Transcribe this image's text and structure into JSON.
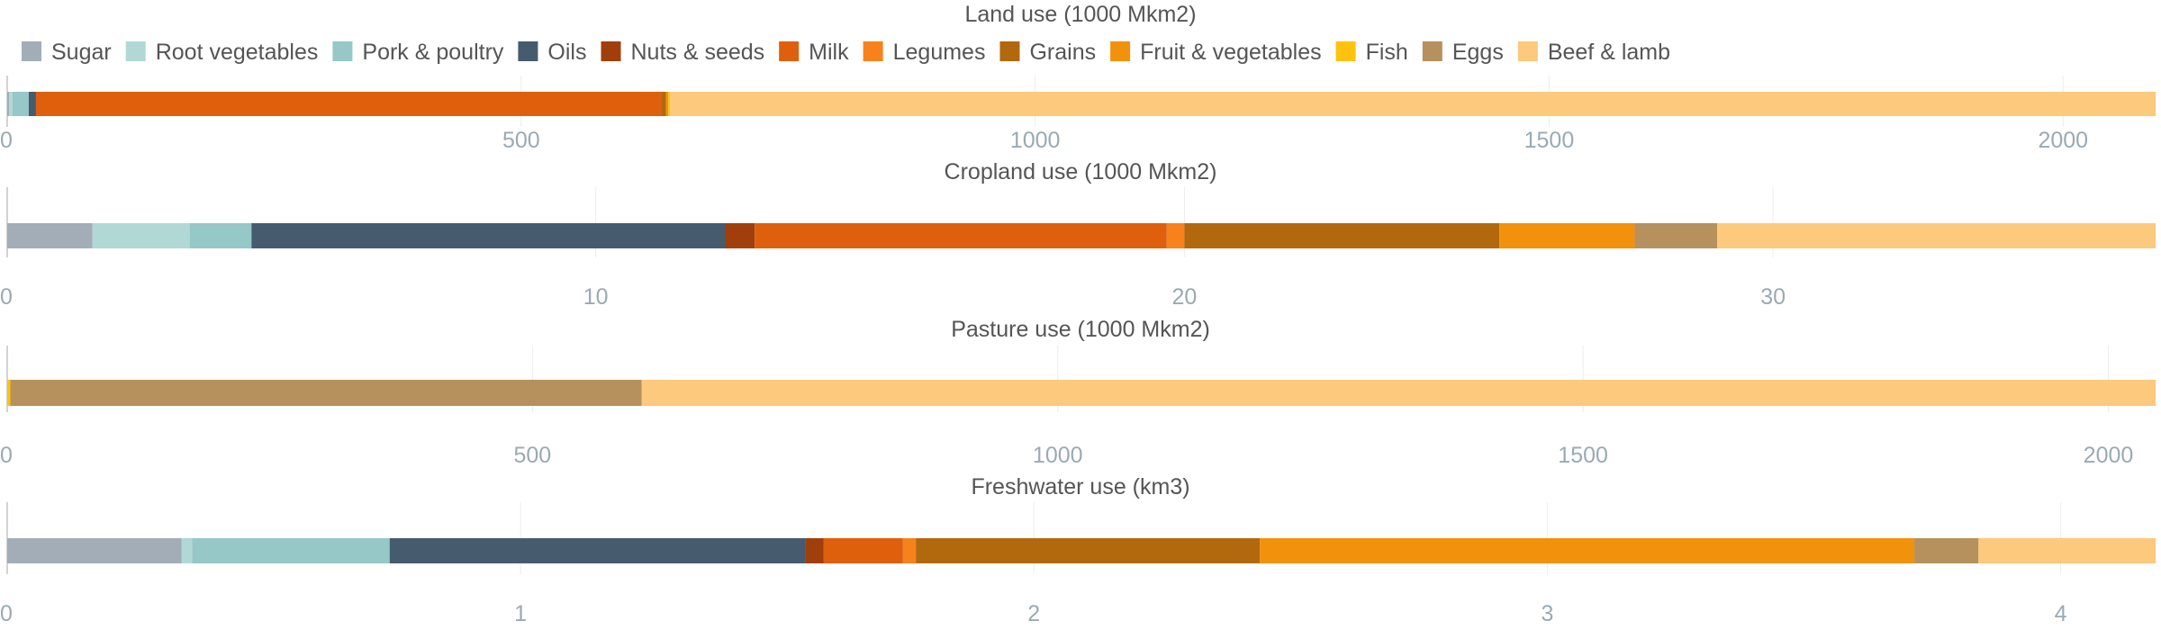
{
  "colors": {
    "Sugar": "#a2adb8",
    "Root vegetables": "#b2d8d6",
    "Pork & poultry": "#95c8c7",
    "Oils": "#465b6e",
    "Nuts & seeds": "#a13f0c",
    "Milk": "#df600c",
    "Legumes": "#f7821b",
    "Grains": "#b2680c",
    "Fruit & vegetables": "#f2910c",
    "Fish": "#ffc20e",
    "Eggs": "#b6915d",
    "Beef & lamb": "#fcc97d"
  },
  "chart_data": [
    {
      "type": "bar",
      "orientation": "horizontal",
      "stacked": true,
      "title": "Land use (1000 Mkm2)",
      "legend": [
        "Sugar",
        "Root vegetables",
        "Pork & poultry",
        "Oils",
        "Nuts & seeds",
        "Milk",
        "Legumes",
        "Grains",
        "Fruit & vegetables",
        "Fish",
        "Eggs",
        "Beef & lamb"
      ],
      "legend_position": "top",
      "xlim": [
        0,
        2090
      ],
      "ticks": [
        0,
        500,
        1000,
        1500,
        2000
      ],
      "grid": true,
      "segments": [
        {
          "name": "Sugar",
          "value": 2
        },
        {
          "name": "Root vegetables",
          "value": 3
        },
        {
          "name": "Pork & poultry",
          "value": 16
        },
        {
          "name": "Oils",
          "value": 7
        },
        {
          "name": "Nuts & seeds",
          "value": 0
        },
        {
          "name": "Milk",
          "value": 608
        },
        {
          "name": "Legumes",
          "value": 0
        },
        {
          "name": "Grains",
          "value": 5
        },
        {
          "name": "Fruit & vegetables",
          "value": 2
        },
        {
          "name": "Fish",
          "value": 2
        },
        {
          "name": "Eggs",
          "value": 0
        },
        {
          "name": "Beef & lamb",
          "value": 1445
        }
      ]
    },
    {
      "type": "bar",
      "orientation": "horizontal",
      "stacked": true,
      "title": "Cropland use (1000 Mkm2)",
      "xlim": [
        0,
        36.5
      ],
      "ticks": [
        0,
        10,
        20,
        30
      ],
      "grid": true,
      "segments": [
        {
          "name": "Sugar",
          "value": 1.45
        },
        {
          "name": "Root vegetables",
          "value": 1.65
        },
        {
          "name": "Pork & poultry",
          "value": 1.05
        },
        {
          "name": "Oils",
          "value": 8.05
        },
        {
          "name": "Nuts & seeds",
          "value": 0.5
        },
        {
          "name": "Milk",
          "value": 7.0
        },
        {
          "name": "Legumes",
          "value": 0.3
        },
        {
          "name": "Grains",
          "value": 5.35
        },
        {
          "name": "Fruit & vegetables",
          "value": 2.3
        },
        {
          "name": "Fish",
          "value": 0.0
        },
        {
          "name": "Eggs",
          "value": 1.4
        },
        {
          "name": "Beef & lamb",
          "value": 7.45
        }
      ]
    },
    {
      "type": "bar",
      "orientation": "horizontal",
      "stacked": true,
      "title": "Pasture use (1000 Mkm2)",
      "xlim": [
        0,
        2045
      ],
      "ticks": [
        0,
        500,
        1000,
        1500,
        2000
      ],
      "grid": true,
      "segments": [
        {
          "name": "Fish",
          "value": 3
        },
        {
          "name": "Eggs",
          "value": 601
        },
        {
          "name": "Beef & lamb",
          "value": 1441
        }
      ]
    },
    {
      "type": "bar",
      "orientation": "horizontal",
      "stacked": true,
      "title": "Freshwater use (km3)",
      "xlim": [
        0,
        4.185
      ],
      "ticks": [
        0,
        1,
        2,
        3,
        4
      ],
      "grid": true,
      "segments": [
        {
          "name": "Sugar",
          "value": 0.34
        },
        {
          "name": "Root vegetables",
          "value": 0.02
        },
        {
          "name": "Pork & poultry",
          "value": 0.385
        },
        {
          "name": "Oils",
          "value": 0.81
        },
        {
          "name": "Nuts & seeds",
          "value": 0.035
        },
        {
          "name": "Milk",
          "value": 0.155
        },
        {
          "name": "Legumes",
          "value": 0.025
        },
        {
          "name": "Grains",
          "value": 0.67
        },
        {
          "name": "Fruit & vegetables",
          "value": 1.275
        },
        {
          "name": "Fish",
          "value": 0.0
        },
        {
          "name": "Eggs",
          "value": 0.125
        },
        {
          "name": "Beef & lamb",
          "value": 0.345
        }
      ]
    }
  ]
}
